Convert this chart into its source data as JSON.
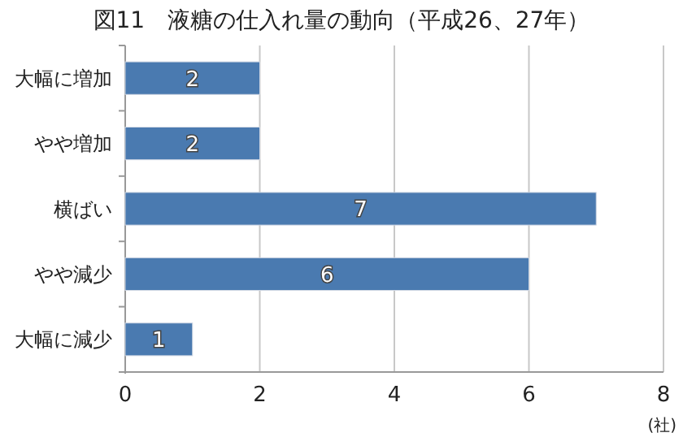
{
  "chart_data": {
    "type": "bar",
    "orientation": "horizontal",
    "title": "図11　液糖の仕入れ量の動向（平成26、27年）",
    "xlabel": "(社)",
    "categories": [
      "大幅に増加",
      "やや増加",
      "横ばい",
      "やや減少",
      "大幅に減少"
    ],
    "values": [
      2,
      2,
      7,
      6,
      1
    ],
    "color": "#4a7ab0",
    "xlim": [
      0,
      8
    ],
    "xticks": [
      0,
      2,
      4,
      6,
      8
    ],
    "grid": "x",
    "data_labels": true
  }
}
